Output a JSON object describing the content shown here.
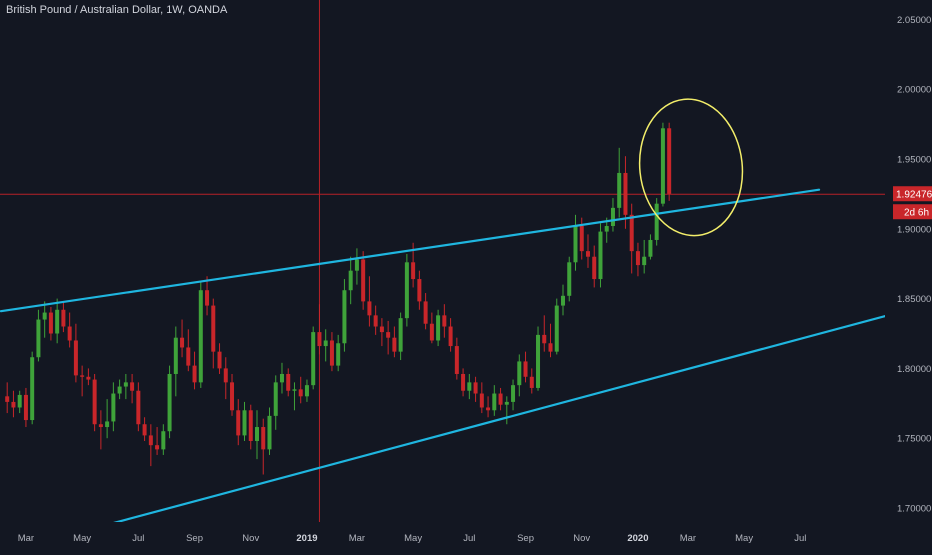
{
  "header": {
    "title": "British Pound / Australian Dollar, 1W, OANDA"
  },
  "colors": {
    "background": "#131722",
    "bull": "#3fa33a",
    "bear": "#c9262a",
    "trendline": "#1fb6e0",
    "annotation": "#f3ee6a",
    "crosshair": "#b62127",
    "price_tag_bg": "#c9262a",
    "axis_text": "#b2b5be"
  },
  "chart_data": {
    "type": "candlestick",
    "title": "British Pound / Australian Dollar, 1W, OANDA",
    "symbol": "GBPAUD",
    "interval": "1W",
    "source": "OANDA",
    "ylim": [
      1.685,
      2.07
    ],
    "y_ticks": [
      "1.70000",
      "1.75000",
      "1.80000",
      "1.85000",
      "1.90000",
      "1.95000",
      "2.00000",
      "2.05000"
    ],
    "x_ticks": [
      {
        "label": "Mar",
        "week": 3,
        "bold": false
      },
      {
        "label": "May",
        "week": 12,
        "bold": false
      },
      {
        "label": "Jul",
        "week": 21,
        "bold": false
      },
      {
        "label": "Sep",
        "week": 30,
        "bold": false
      },
      {
        "label": "Nov",
        "week": 39,
        "bold": false
      },
      {
        "label": "2019",
        "week": 48,
        "bold": true
      },
      {
        "label": "Mar",
        "week": 56,
        "bold": false
      },
      {
        "label": "May",
        "week": 65,
        "bold": false
      },
      {
        "label": "Jul",
        "week": 74,
        "bold": false
      },
      {
        "label": "Sep",
        "week": 83,
        "bold": false
      },
      {
        "label": "Nov",
        "week": 92,
        "bold": false
      },
      {
        "label": "2020",
        "week": 101,
        "bold": true
      },
      {
        "label": "Mar",
        "week": 109,
        "bold": false
      },
      {
        "label": "May",
        "week": 118,
        "bold": false
      },
      {
        "label": "Jul",
        "week": 127,
        "bold": false
      }
    ],
    "current_price": "1.92476",
    "time_to_close": "2d 6h",
    "candles": [
      [
        1.78,
        1.79,
        1.768,
        1.776
      ],
      [
        1.776,
        1.784,
        1.765,
        1.772
      ],
      [
        1.772,
        1.784,
        1.768,
        1.781
      ],
      [
        1.781,
        1.786,
        1.758,
        1.763
      ],
      [
        1.763,
        1.812,
        1.76,
        1.808
      ],
      [
        1.808,
        1.842,
        1.805,
        1.835
      ],
      [
        1.835,
        1.848,
        1.822,
        1.84
      ],
      [
        1.84,
        1.844,
        1.82,
        1.825
      ],
      [
        1.825,
        1.85,
        1.818,
        1.842
      ],
      [
        1.842,
        1.848,
        1.826,
        1.83
      ],
      [
        1.83,
        1.84,
        1.815,
        1.82
      ],
      [
        1.82,
        1.832,
        1.79,
        1.795
      ],
      [
        1.795,
        1.802,
        1.78,
        1.794
      ],
      [
        1.794,
        1.8,
        1.788,
        1.792
      ],
      [
        1.792,
        1.796,
        1.755,
        1.76
      ],
      [
        1.76,
        1.77,
        1.742,
        1.758
      ],
      [
        1.758,
        1.778,
        1.75,
        1.762
      ],
      [
        1.762,
        1.79,
        1.755,
        1.782
      ],
      [
        1.782,
        1.792,
        1.778,
        1.787
      ],
      [
        1.787,
        1.796,
        1.778,
        1.79
      ],
      [
        1.79,
        1.796,
        1.775,
        1.784
      ],
      [
        1.784,
        1.79,
        1.755,
        1.76
      ],
      [
        1.76,
        1.765,
        1.748,
        1.752
      ],
      [
        1.752,
        1.76,
        1.73,
        1.745
      ],
      [
        1.745,
        1.758,
        1.738,
        1.742
      ],
      [
        1.742,
        1.76,
        1.738,
        1.755
      ],
      [
        1.755,
        1.802,
        1.75,
        1.796
      ],
      [
        1.796,
        1.83,
        1.78,
        1.822
      ],
      [
        1.822,
        1.835,
        1.808,
        1.815
      ],
      [
        1.815,
        1.828,
        1.798,
        1.802
      ],
      [
        1.802,
        1.812,
        1.785,
        1.79
      ],
      [
        1.79,
        1.862,
        1.786,
        1.856
      ],
      [
        1.856,
        1.866,
        1.838,
        1.845
      ],
      [
        1.845,
        1.85,
        1.8,
        1.812
      ],
      [
        1.812,
        1.818,
        1.796,
        1.8
      ],
      [
        1.8,
        1.808,
        1.778,
        1.79
      ],
      [
        1.79,
        1.796,
        1.766,
        1.77
      ],
      [
        1.77,
        1.778,
        1.745,
        1.752
      ],
      [
        1.752,
        1.776,
        1.748,
        1.77
      ],
      [
        1.77,
        1.774,
        1.742,
        1.748
      ],
      [
        1.748,
        1.77,
        1.735,
        1.758
      ],
      [
        1.758,
        1.764,
        1.724,
        1.742
      ],
      [
        1.742,
        1.772,
        1.738,
        1.766
      ],
      [
        1.766,
        1.795,
        1.756,
        1.79
      ],
      [
        1.79,
        1.804,
        1.782,
        1.796
      ],
      [
        1.796,
        1.8,
        1.78,
        1.784
      ],
      [
        1.784,
        1.79,
        1.77,
        1.785
      ],
      [
        1.785,
        1.794,
        1.775,
        1.78
      ],
      [
        1.78,
        1.792,
        1.776,
        1.788
      ],
      [
        1.788,
        1.83,
        1.785,
        1.826
      ],
      [
        1.826,
        1.846,
        1.81,
        1.816
      ],
      [
        1.816,
        1.828,
        1.805,
        1.82
      ],
      [
        1.82,
        1.826,
        1.798,
        1.802
      ],
      [
        1.802,
        1.824,
        1.798,
        1.818
      ],
      [
        1.818,
        1.864,
        1.812,
        1.856
      ],
      [
        1.856,
        1.88,
        1.846,
        1.87
      ],
      [
        1.87,
        1.886,
        1.86,
        1.878
      ],
      [
        1.878,
        1.884,
        1.842,
        1.848
      ],
      [
        1.848,
        1.866,
        1.83,
        1.838
      ],
      [
        1.838,
        1.845,
        1.824,
        1.83
      ],
      [
        1.83,
        1.836,
        1.816,
        1.826
      ],
      [
        1.826,
        1.834,
        1.81,
        1.822
      ],
      [
        1.822,
        1.83,
        1.808,
        1.812
      ],
      [
        1.812,
        1.84,
        1.806,
        1.836
      ],
      [
        1.836,
        1.882,
        1.83,
        1.876
      ],
      [
        1.876,
        1.89,
        1.858,
        1.864
      ],
      [
        1.864,
        1.87,
        1.842,
        1.848
      ],
      [
        1.848,
        1.854,
        1.828,
        1.832
      ],
      [
        1.832,
        1.84,
        1.818,
        1.82
      ],
      [
        1.82,
        1.842,
        1.816,
        1.838
      ],
      [
        1.838,
        1.846,
        1.822,
        1.83
      ],
      [
        1.83,
        1.836,
        1.812,
        1.816
      ],
      [
        1.816,
        1.822,
        1.792,
        1.796
      ],
      [
        1.796,
        1.8,
        1.78,
        1.784
      ],
      [
        1.784,
        1.796,
        1.778,
        1.79
      ],
      [
        1.79,
        1.794,
        1.776,
        1.782
      ],
      [
        1.782,
        1.79,
        1.768,
        1.772
      ],
      [
        1.772,
        1.78,
        1.765,
        1.77
      ],
      [
        1.77,
        1.788,
        1.766,
        1.782
      ],
      [
        1.782,
        1.786,
        1.77,
        1.774
      ],
      [
        1.774,
        1.78,
        1.76,
        1.776
      ],
      [
        1.776,
        1.792,
        1.77,
        1.788
      ],
      [
        1.788,
        1.81,
        1.78,
        1.805
      ],
      [
        1.805,
        1.812,
        1.79,
        1.794
      ],
      [
        1.794,
        1.8,
        1.782,
        1.786
      ],
      [
        1.786,
        1.83,
        1.784,
        1.824
      ],
      [
        1.824,
        1.838,
        1.812,
        1.818
      ],
      [
        1.818,
        1.832,
        1.808,
        1.812
      ],
      [
        1.812,
        1.85,
        1.81,
        1.845
      ],
      [
        1.845,
        1.86,
        1.838,
        1.852
      ],
      [
        1.852,
        1.88,
        1.848,
        1.876
      ],
      [
        1.876,
        1.91,
        1.87,
        1.902
      ],
      [
        1.902,
        1.908,
        1.878,
        1.884
      ],
      [
        1.884,
        1.896,
        1.872,
        1.88
      ],
      [
        1.88,
        1.888,
        1.858,
        1.864
      ],
      [
        1.864,
        1.904,
        1.858,
        1.898
      ],
      [
        1.898,
        1.908,
        1.89,
        1.902
      ],
      [
        1.902,
        1.922,
        1.898,
        1.915
      ],
      [
        1.915,
        1.958,
        1.908,
        1.94
      ],
      [
        1.94,
        1.952,
        1.9,
        1.91
      ],
      [
        1.91,
        1.918,
        1.868,
        1.884
      ],
      [
        1.884,
        1.89,
        1.866,
        1.874
      ],
      [
        1.874,
        1.892,
        1.868,
        1.88
      ],
      [
        1.88,
        1.896,
        1.878,
        1.892
      ],
      [
        1.892,
        1.922,
        1.888,
        1.918
      ],
      [
        1.918,
        1.976,
        1.916,
        1.972
      ],
      [
        1.972,
        1.976,
        1.92,
        1.925
      ]
    ],
    "trendlines": [
      {
        "name": "upper-channel",
        "points": [
          [
            -1,
            1.841
          ],
          [
            130,
            1.928
          ]
        ]
      },
      {
        "name": "lower-channel",
        "points": [
          [
            16,
            1.688
          ],
          [
            141,
            1.838
          ]
        ]
      }
    ],
    "annotations": [
      {
        "type": "ellipse",
        "center": [
          109.5,
          1.944
        ],
        "radius_weeks": 8.2,
        "radius_price": 0.049
      }
    ]
  }
}
